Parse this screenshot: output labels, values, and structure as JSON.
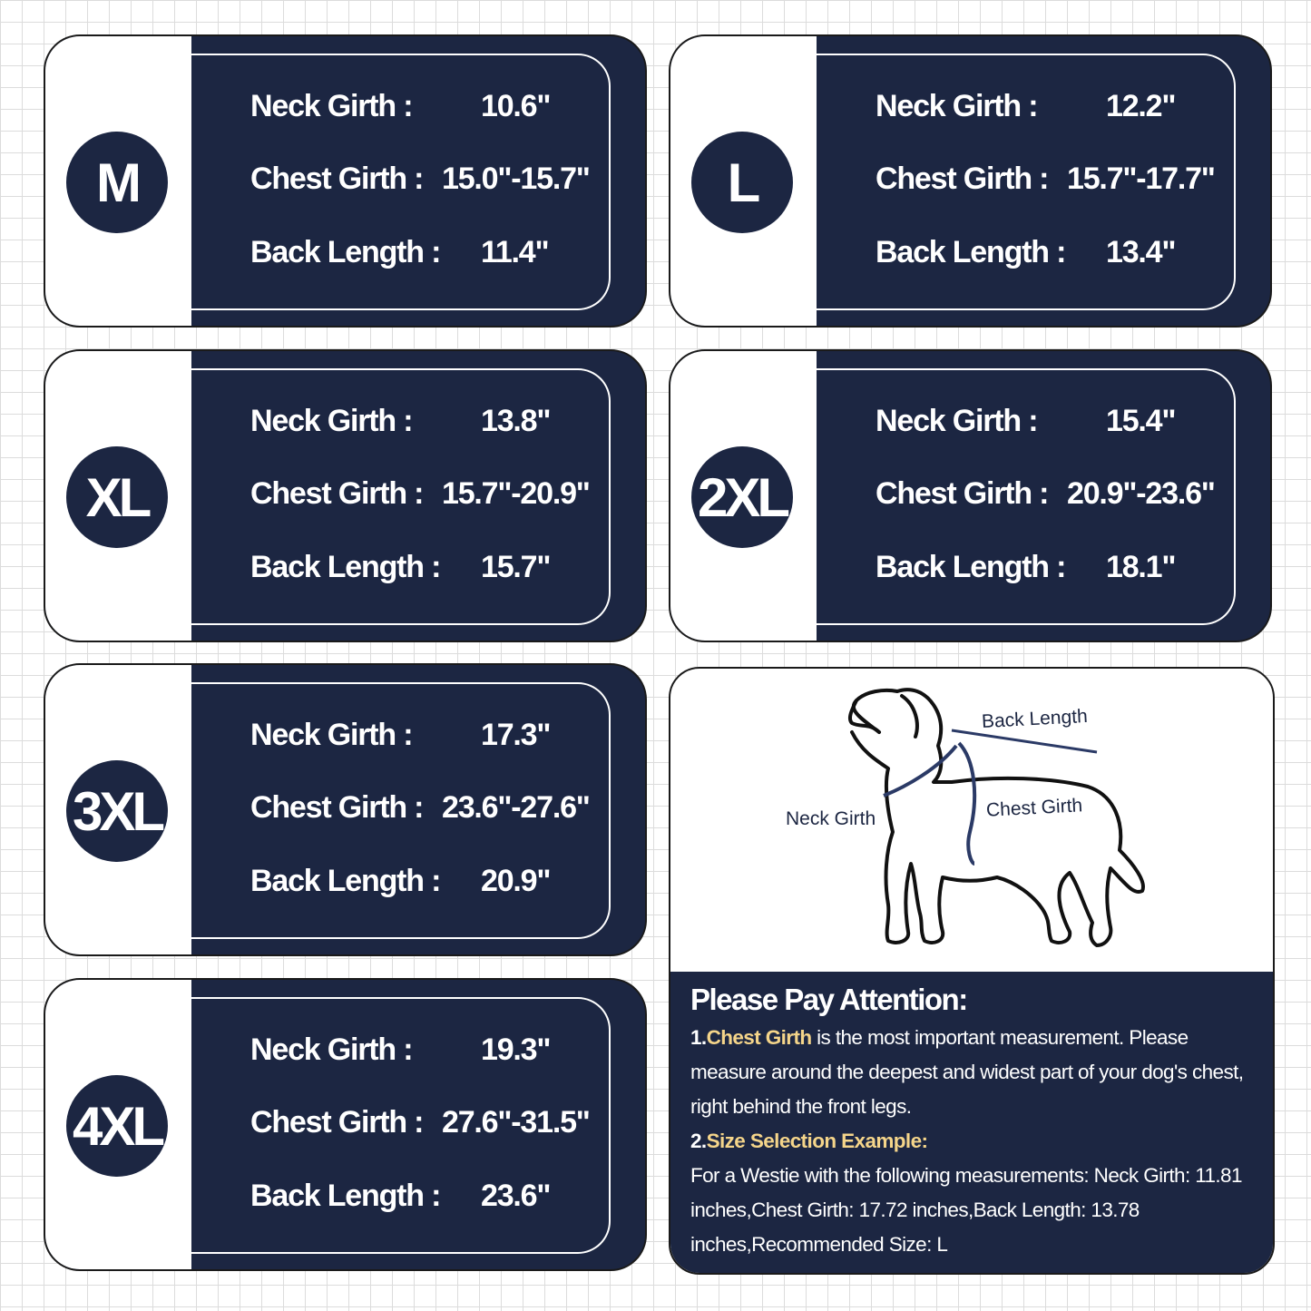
{
  "colors": {
    "navy": "#1c2642",
    "highlight": "#f5d58a"
  },
  "labels": {
    "neck": "Neck Girth :",
    "chest": "Chest Girth :",
    "back": "Back Length :"
  },
  "sizes": [
    {
      "size": "M",
      "neck": "10.6\"",
      "chest": "15.0\"-15.7\"",
      "back": "11.4\""
    },
    {
      "size": "L",
      "neck": "12.2\"",
      "chest": "15.7\"-17.7\"",
      "back": "13.4\""
    },
    {
      "size": "XL",
      "neck": "13.8\"",
      "chest": "15.7\"-20.9\"",
      "back": "15.7\""
    },
    {
      "size": "2XL",
      "neck": "15.4\"",
      "chest": "20.9\"-23.6\"",
      "back": "18.1\""
    },
    {
      "size": "3XL",
      "neck": "17.3\"",
      "chest": "23.6\"-27.6\"",
      "back": "20.9\""
    },
    {
      "size": "4XL",
      "neck": "19.3\"",
      "chest": "27.6\"-31.5\"",
      "back": "23.6\""
    }
  ],
  "diagram": {
    "back_length": "Back Length",
    "neck_girth": "Neck Girth",
    "chest_girth": "Chest Girth"
  },
  "attention": {
    "title": "Please Pay Attention:",
    "p1_num": "1.",
    "p1_hl": "Chest Girth",
    "p1_text": " is the most important measurement. Please measure around the deepest and widest part of your dog's chest, right behind the front legs.",
    "p2_num": "2.",
    "p2_hl": "Size Selection Example:",
    "p3_text": "For a Westie with the following measurements: Neck Girth: 11.81 inches,Chest Girth: 17.72 inches,Back Length: 13.78 inches,Recommended Size: L"
  }
}
